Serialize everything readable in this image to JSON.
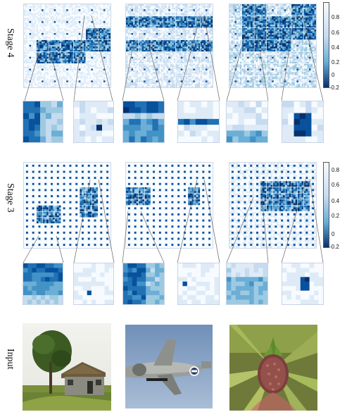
{
  "stages": [
    {
      "label": "Stage 4",
      "colorbar_ticks": [
        "0.8",
        "0.6",
        "0.4",
        "0.2",
        "0",
        "-0.2"
      ]
    },
    {
      "label": "Stage 3",
      "colorbar_ticks": [
        "0.8",
        "0.6",
        "0.4",
        "0.2",
        "0",
        "-0.2"
      ]
    }
  ],
  "input_label": "Input",
  "colors": {
    "dark": "#08306b",
    "mid": "#2171b5",
    "light": "#c6dbef",
    "white": "#f7fbff"
  }
}
